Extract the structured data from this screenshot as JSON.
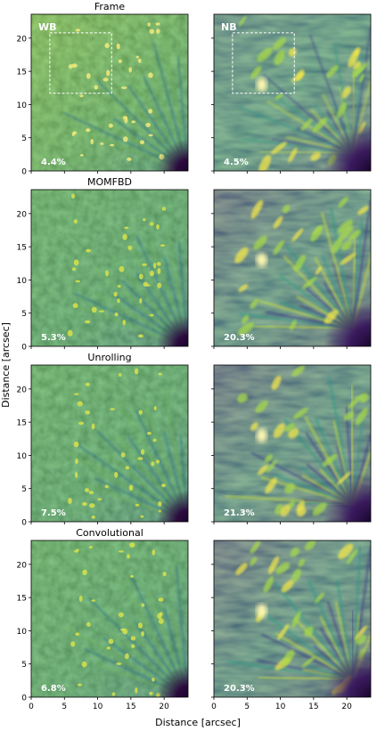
{
  "figure": {
    "ylabel": "Distance [arcsec]",
    "xlabel": "Distance [arcsec]",
    "y_ticks": [
      "0",
      "5",
      "10",
      "15",
      "20"
    ],
    "x_ticks": [
      "0",
      "5",
      "10",
      "15",
      "20"
    ],
    "columns": [
      {
        "label": "WB",
        "colormap": "wb-green"
      },
      {
        "label": "NB",
        "colormap": "viridis"
      }
    ],
    "rows": [
      {
        "title": "Frame",
        "contrast": [
          "4.4%",
          "4.5%"
        ],
        "roi_box": true
      },
      {
        "title": "MOMFBD",
        "contrast": [
          "5.3%",
          "20.3%"
        ],
        "roi_box": false
      },
      {
        "title": "Unrolling",
        "contrast": [
          "7.5%",
          "21.3%"
        ],
        "roi_box": false
      },
      {
        "title": "Convolutional",
        "contrast": [
          "6.8%",
          "20.3%"
        ],
        "roi_box": false
      }
    ],
    "colors": {
      "wb_base": "#4aa06a",
      "nb_base": "#2a788e",
      "umbra": "#2b0a3d",
      "bright": "#f5e94a",
      "box": "#ffffff"
    }
  }
}
